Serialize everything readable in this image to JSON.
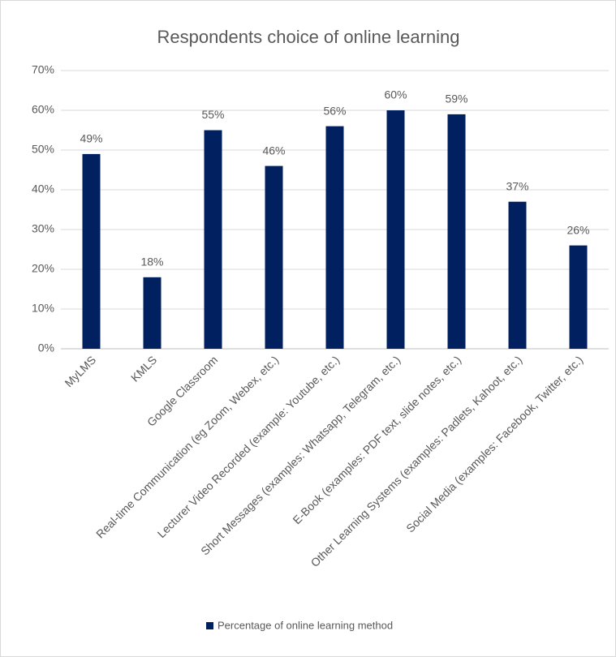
{
  "chart_data": {
    "type": "bar",
    "title": "Respondents choice of online learning",
    "categories": [
      "MyLMS",
      "KMLS",
      "Google Classroom",
      "Real-time Communication (eg Zoom, Webex, etc.)",
      "Lecturer Video Recorded (example: Youtube, etc.)",
      "Short Messages (examples: Whatsapp, Telegram, etc.)",
      "E-Book (examples: PDF text, slide notes, etc.)",
      "Other Learning Systems (examples: Padlets, Kahoot, etc.)",
      "Social Media (examples: Facebook, Twitter, etc.)"
    ],
    "series": [
      {
        "name": "Percentage of online learning method",
        "color": "#002060",
        "values": [
          49,
          18,
          55,
          46,
          56,
          60,
          59,
          37,
          26
        ],
        "value_labels": [
          "49%",
          "18%",
          "55%",
          "46%",
          "56%",
          "60%",
          "59%",
          "37%",
          "26%"
        ]
      }
    ],
    "ylim": [
      0,
      70
    ],
    "yticks": [
      {
        "value": 0,
        "label": "0%"
      },
      {
        "value": 10,
        "label": "10%"
      },
      {
        "value": 20,
        "label": "20%"
      },
      {
        "value": 30,
        "label": "30%"
      },
      {
        "value": 40,
        "label": "40%"
      },
      {
        "value": 50,
        "label": "50%"
      },
      {
        "value": 60,
        "label": "60%"
      },
      {
        "value": 70,
        "label": "70%"
      }
    ],
    "grid": true,
    "legend": "bottom"
  }
}
